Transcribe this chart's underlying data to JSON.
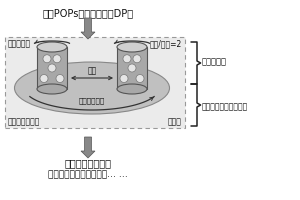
{
  "title": "新兴POPs物质得克隆（DP）",
  "box_label_tl": "球磨罐自转",
  "box_label_tr": "自转/公转=2",
  "box_label_bl": "机械力化学反应",
  "box_label_br": "球磨机",
  "center_label": "磨球",
  "ellipse_label": "球磨转盘公转",
  "right_label1": "不同添加剂",
  "right_label2": "不同添加剂之间的配比",
  "bottom_label1": "快速无害化地处置",
  "bottom_label2": "降解成金属氯盐、无机碳… …",
  "bg_color": "#ffffff",
  "box_bg": "#ebebeb",
  "arrow_color": "#666666",
  "text_color": "#111111",
  "dashed_color": "#999999",
  "ellipse_fill": "#c0c0c0",
  "cylinder_fill": "#a8a8a8",
  "cylinder_top": "#d5d5d5",
  "brace_color": "#222222",
  "dot_color": "#e8e8e8"
}
